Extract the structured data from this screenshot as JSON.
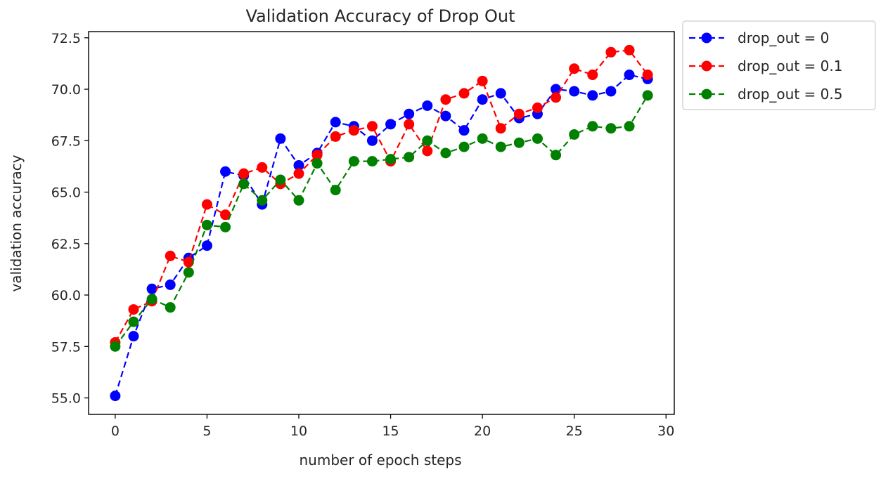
{
  "chart_data": {
    "type": "line",
    "title": "Validation Accuracy of Drop Out",
    "xlabel": "number of epoch steps",
    "ylabel": "validation accuracy",
    "xlim": [
      -1.45,
      30.45
    ],
    "ylim": [
      54.2,
      72.8
    ],
    "xticks": [
      0,
      5,
      10,
      15,
      20,
      25,
      30
    ],
    "yticks": [
      55.0,
      57.5,
      60.0,
      62.5,
      65.0,
      67.5,
      70.0,
      72.5
    ],
    "xtick_labels": [
      "0",
      "5",
      "10",
      "15",
      "20",
      "25",
      "30"
    ],
    "ytick_labels": [
      "55.0",
      "57.5",
      "60.0",
      "62.5",
      "65.0",
      "67.5",
      "70.0",
      "72.5"
    ],
    "grid": false,
    "legend_position": "outside-top-right",
    "line_style": "dashed",
    "marker": "circle",
    "x": [
      0,
      1,
      2,
      3,
      4,
      5,
      6,
      7,
      8,
      9,
      10,
      11,
      12,
      13,
      14,
      15,
      16,
      17,
      18,
      19,
      20,
      21,
      22,
      23,
      24,
      25,
      26,
      27,
      28,
      29
    ],
    "series": [
      {
        "name": "drop_out = 0",
        "color": "#0000ff",
        "values": [
          55.1,
          58.0,
          60.3,
          60.5,
          61.8,
          62.4,
          66.0,
          65.8,
          64.4,
          67.6,
          66.3,
          66.9,
          68.4,
          68.2,
          67.5,
          68.3,
          68.8,
          69.2,
          68.7,
          68.0,
          69.5,
          69.8,
          68.6,
          68.8,
          70.0,
          69.9,
          69.7,
          69.9,
          70.7,
          70.5
        ]
      },
      {
        "name": "drop_out = 0.1",
        "color": "#ff0000",
        "values": [
          57.7,
          59.3,
          59.7,
          61.9,
          61.6,
          64.4,
          63.9,
          65.9,
          66.2,
          65.4,
          65.9,
          66.8,
          67.7,
          68.0,
          68.2,
          66.5,
          68.3,
          67.0,
          69.5,
          69.8,
          70.4,
          68.1,
          68.8,
          69.1,
          69.6,
          71.0,
          70.7,
          71.8,
          71.9,
          70.7
        ]
      },
      {
        "name": "drop_out = 0.5",
        "color": "#008000",
        "values": [
          57.5,
          58.7,
          59.8,
          59.4,
          61.1,
          63.4,
          63.3,
          65.4,
          64.6,
          65.6,
          64.6,
          66.4,
          65.1,
          66.5,
          66.5,
          66.6,
          66.7,
          67.5,
          66.9,
          67.2,
          67.6,
          67.2,
          67.4,
          67.6,
          66.8,
          67.8,
          68.2,
          68.1,
          68.2,
          69.7
        ]
      }
    ]
  }
}
